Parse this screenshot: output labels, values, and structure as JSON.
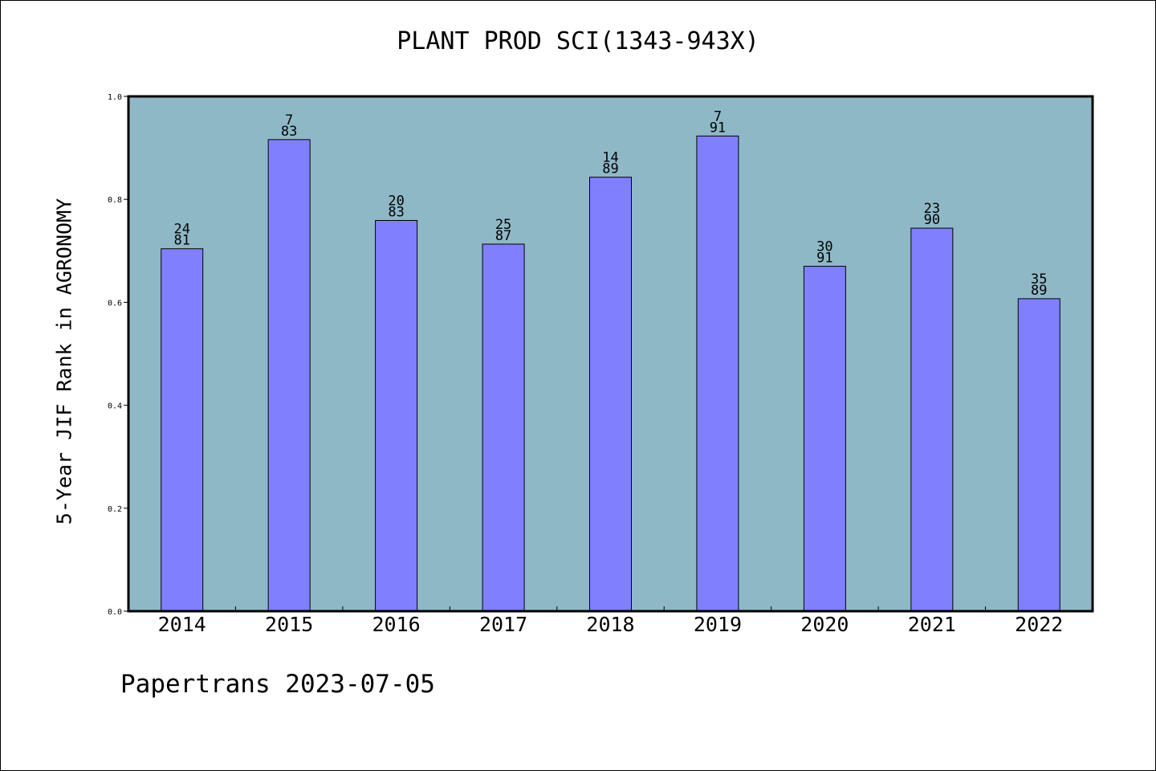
{
  "chart_data": {
    "type": "bar",
    "title": "PLANT PROD SCI(1343-943X)",
    "xlabel": "",
    "ylabel": "5-Year JIF Rank in AGRONOMY",
    "ylim": [
      0,
      1.0
    ],
    "yticks": [
      "0.0",
      "0.2",
      "0.4",
      "0.6",
      "0.8",
      "1.0"
    ],
    "grid": false,
    "categories": [
      "2014",
      "2015",
      "2016",
      "2017",
      "2018",
      "2019",
      "2020",
      "2021",
      "2022"
    ],
    "values": [
      0.704,
      0.916,
      0.759,
      0.713,
      0.843,
      0.923,
      0.67,
      0.744,
      0.607
    ],
    "rank": [
      "24",
      "7",
      "20",
      "25",
      "14",
      "7",
      "30",
      "23",
      "35"
    ],
    "total": [
      "81",
      "83",
      "83",
      "87",
      "89",
      "91",
      "91",
      "90",
      "89"
    ],
    "colors": {
      "bar": "#8080ff",
      "plot_background": "#8fb8c7",
      "axis": "#000000"
    }
  },
  "footer": {
    "text": "Papertrans 2023-07-05"
  }
}
